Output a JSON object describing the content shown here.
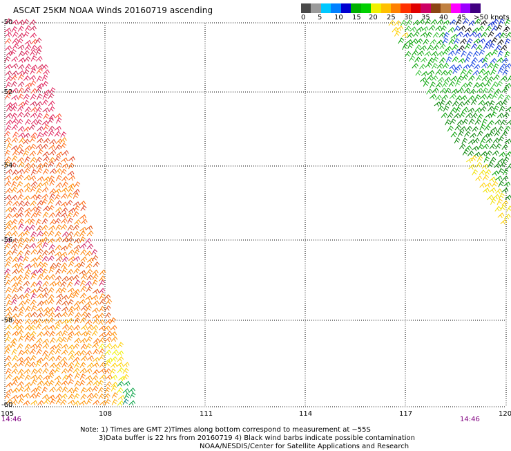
{
  "title": "ASCAT 25KM NOAA Winds 20160719 ascending",
  "legend": {
    "colors": [
      "#4a4a4a",
      "#9a9a9a",
      "#00c8ff",
      "#0080ff",
      "#0000d0",
      "#00b000",
      "#00d000",
      "#f0f000",
      "#ffc000",
      "#ff8000",
      "#ff3000",
      "#e00000",
      "#cc0066",
      "#8b4513",
      "#c08040",
      "#ff00ff",
      "#9a00ff",
      "#400080"
    ],
    "labels": [
      "0",
      "5",
      "10",
      "15",
      "20",
      "25",
      "30",
      "35",
      "40",
      "45",
      ">50 knots"
    ]
  },
  "map": {
    "lon_labels": [
      "105",
      "108",
      "111",
      "114",
      "117",
      "120"
    ],
    "lat_labels": [
      "-50",
      "-52",
      "-54",
      "-56",
      "-58",
      "-60"
    ],
    "time_left": "14:46",
    "time_right": "14:46"
  },
  "notes": {
    "line1": "Note: 1) Times are GMT 2)Times along bottom correspond to measurement at −55S",
    "line2": "3)Data buffer is 22 hrs from 20160719 4) Black wind barbs indicate possible contamination",
    "line3": "NOAA/NESDIS/Center for Satellite Applications and Research"
  }
}
